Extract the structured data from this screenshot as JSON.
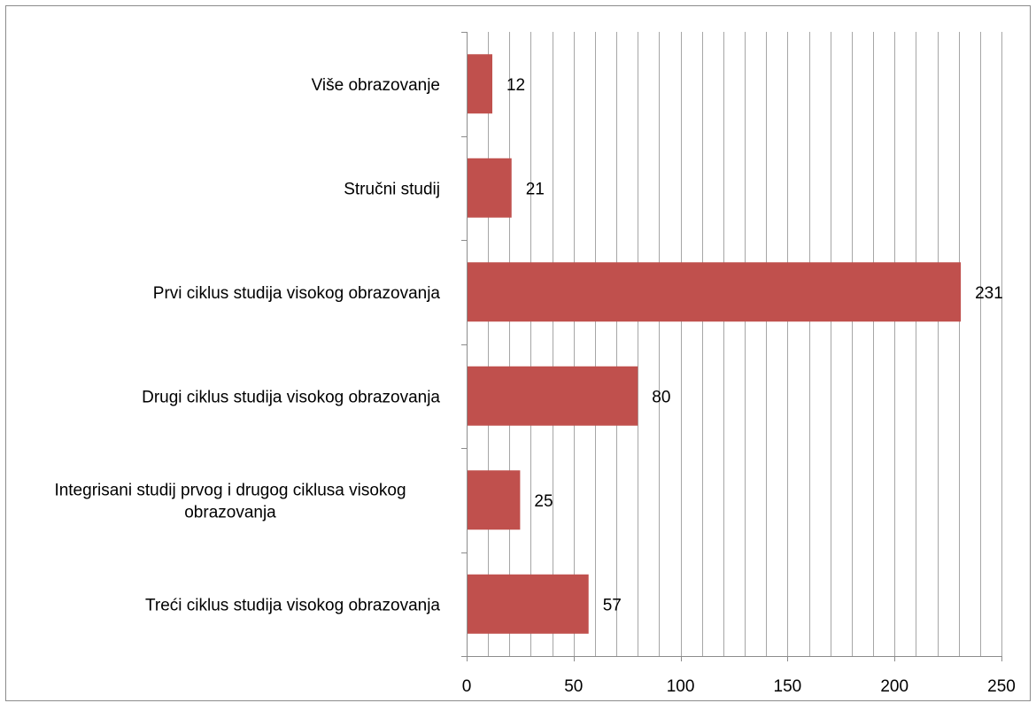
{
  "chart_data": {
    "type": "bar",
    "orientation": "horizontal",
    "categories": [
      "Više obrazovanje",
      "Stručni studij",
      "Prvi ciklus studija visokog obrazovanja",
      "Drugi ciklus studija visokog obrazovanja",
      "Integrisani studij prvog i drugog ciklusa visokog obrazovanja",
      "Treći ciklus studija visokog obrazovanja"
    ],
    "category_lines": [
      [
        "Više obrazovanje"
      ],
      [
        "Stručni studij"
      ],
      [
        "Prvi ciklus studija visokog obrazovanja"
      ],
      [
        "Drugi ciklus studija visokog obrazovanja"
      ],
      [
        "Integrisani studij prvog i drugog ciklusa visokog",
        "obrazovanja"
      ],
      [
        "Treći ciklus studija visokog obrazovanja"
      ]
    ],
    "values": [
      12,
      21,
      231,
      80,
      25,
      57
    ],
    "xlim": [
      0,
      250
    ],
    "x_ticks": [
      0,
      50,
      100,
      150,
      200,
      250
    ],
    "x_minor_step": 10,
    "grid": "vertical",
    "data_labels": true,
    "legend": "none",
    "colors": {
      "bar": "#c0504d",
      "grid": "#a6a6a6",
      "axis": "#8c8c8c"
    }
  }
}
